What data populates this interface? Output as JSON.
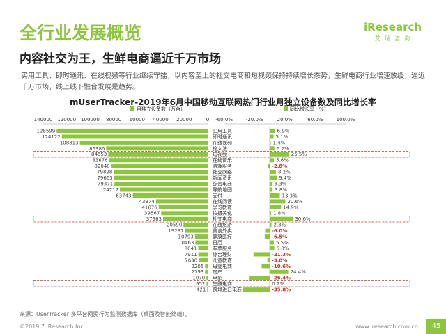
{
  "page": {
    "title": "全行业发展概览",
    "subtitle": "内容社交为王，生鲜电商逼近千万市场",
    "description": "实用工具、即时通讯、在线视频等行业继续守擂，以内容至上的社交电商和短视频保持持续增长态势，生鲜电商行业增速放缓，逼近千万市场，线上线下融合发展是趋势。",
    "source": "来源：UserTracker 多平台网民行为监测数据库（桌面及智能终端）。",
    "copyright": "©2019.7 iResearch Inc.",
    "website": "www.iresearch.com.cn",
    "page_number": "45"
  },
  "logo": {
    "brand": "iResearch",
    "chinese": "艾瑞咨询"
  },
  "colors": {
    "accent": "#8cc63f",
    "negative": "#c0392b",
    "highlight_border": "#c0392b"
  },
  "chart_data": {
    "type": "bar",
    "title": "mUserTracker-2019年6月中国移动互联网热门行业月独立设备数及同比增长率",
    "left_axis": {
      "legend": "月独立设备数（万台）",
      "ticks": [
        "140000",
        "120000",
        "100000",
        "80000",
        "60000",
        "40000",
        "20000",
        "0"
      ],
      "range": [
        0,
        140000
      ]
    },
    "right_axis": {
      "legend": "同比增长率（%）",
      "ticks": [
        "-60.0%",
        "-20.0%",
        "20.0%",
        "60.0%",
        "100.0%"
      ],
      "range": [
        -60,
        100
      ]
    },
    "highlighted": [
      "短视频",
      "社交电商",
      "生鲜电商"
    ],
    "categories": [
      "实用工具",
      "即时通讯",
      "在线视频",
      "输入法",
      "短视频",
      "在线音乐",
      "游戏服务",
      "社交网络",
      "新闻资讯",
      "综合电商",
      "导航地图",
      "支付",
      "在线阅读",
      "学习教育",
      "拍摄美化",
      "社交电商",
      "在线旅游",
      "美食外卖",
      "健康医疗",
      "日历",
      "车票服务",
      "综合理财",
      "儿童教育",
      "母婴电商",
      "房产",
      "电影",
      "生鲜电商",
      "跨境进口电商"
    ],
    "series": [
      {
        "name": "月独立设备数（万台）",
        "values": [
          128599,
          124122,
          108813,
          86386,
          84653,
          83876,
          82040,
          79898,
          79663,
          79371,
          74717,
          63743,
          43974,
          41676,
          39567,
          37963,
          20590,
          19237,
          10793,
          10463,
          8041,
          7911,
          7630,
          2205,
          2193,
          1070,
          952,
          421
        ],
        "labels": [
          "128599",
          "124122",
          "108813",
          "86386",
          "84653",
          "83876",
          "82040",
          "79898",
          "79663",
          "79371",
          "74717",
          "63743",
          "43974",
          "41676",
          "39567",
          "37963",
          "20590",
          "19237",
          "10793",
          "10463",
          "8041",
          "7911",
          "7630",
          "2205",
          "2193",
          "1070",
          "952",
          "421"
        ]
      },
      {
        "name": "同比增长率（%）",
        "values": [
          6.9,
          5.1,
          1.4,
          6.2,
          25.5,
          5.6,
          -2.8,
          8.2,
          9.4,
          3.3,
          3.8,
          13.3,
          20.6,
          14.9,
          1.8,
          30.6,
          2.3,
          -6.0,
          -6.5,
          5.5,
          6.0,
          -21.3,
          -3.0,
          -10.6,
          24.4,
          -26.4,
          0.2,
          -35.8
        ],
        "labels": [
          "6.9%",
          "5.1%",
          "1.4%",
          "6.2%",
          "25.5%",
          "5.6%",
          "-2.8%",
          "8.2%",
          "9.4%",
          "3.3%",
          "3.8%",
          "13.3%",
          "20.6%",
          "14.9%",
          "1.8%",
          "30.6%",
          "2.3%",
          "-6.0%",
          "-6.5%",
          "5.5%",
          "6.0%",
          "-21.3%",
          "-3.0%",
          "-10.6%",
          "24.4%",
          "-26.4%",
          "0.2%",
          "-35.8%"
        ]
      }
    ]
  }
}
